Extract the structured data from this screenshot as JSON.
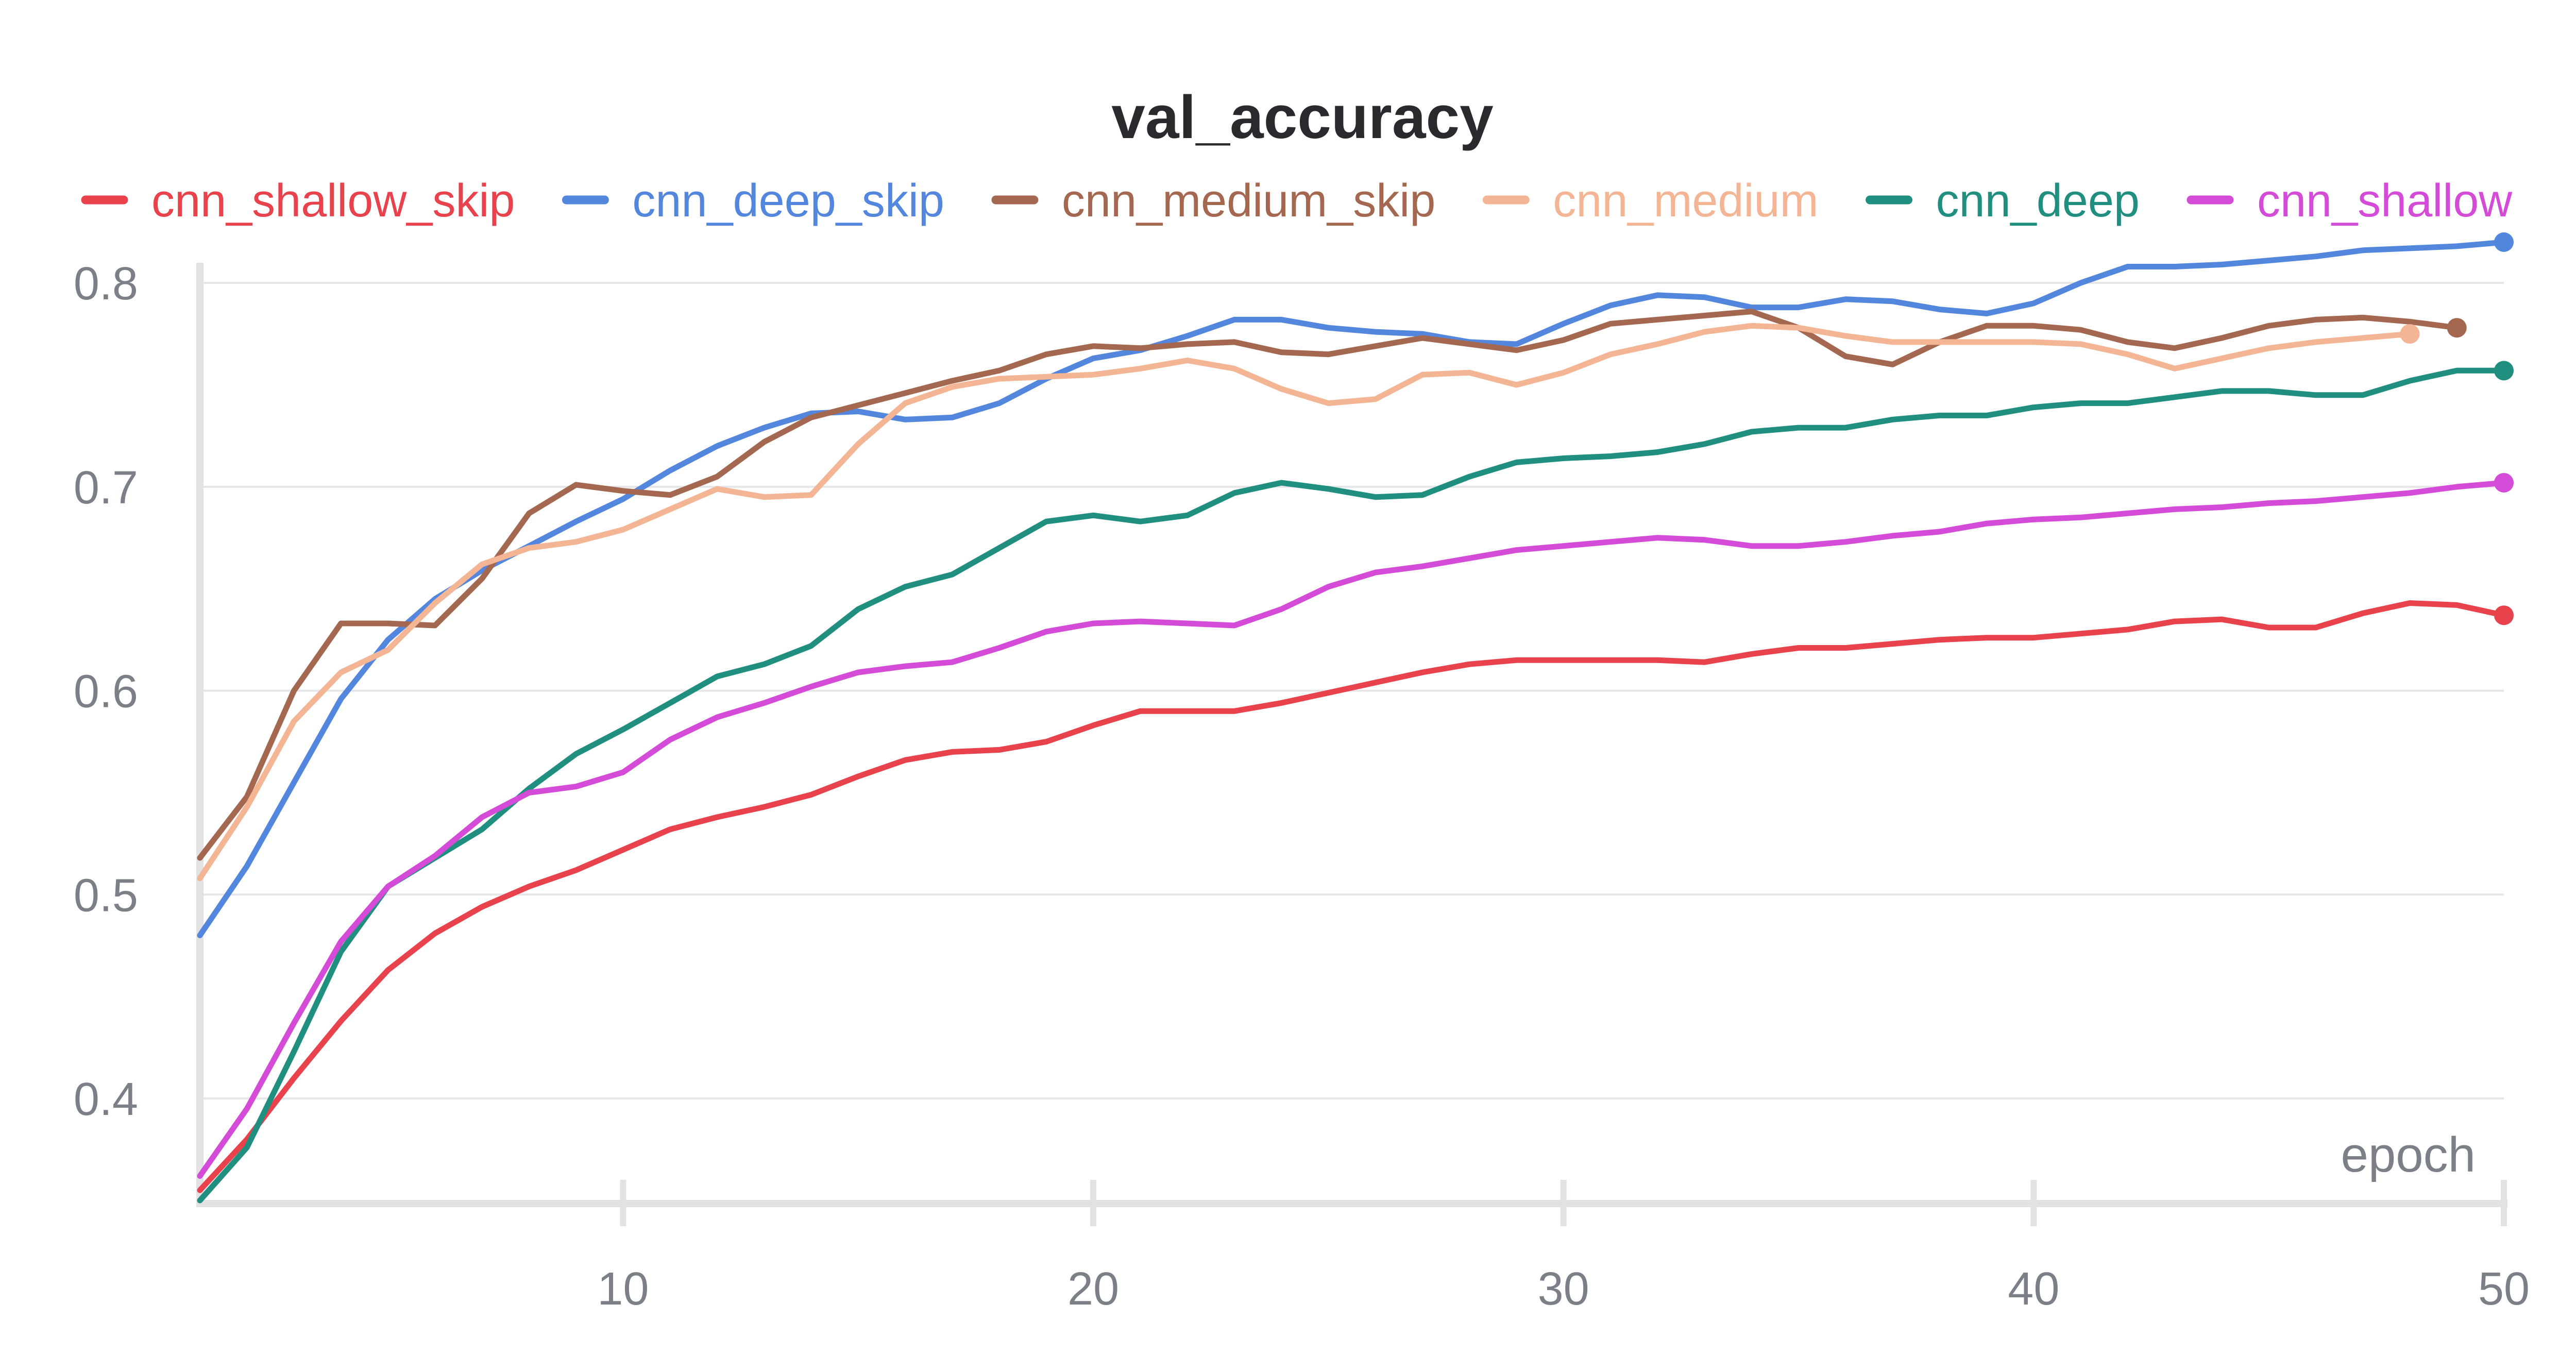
{
  "chart_data": {
    "type": "line",
    "title": "val_accuracy",
    "xlabel": "epoch",
    "ylabel": "",
    "xlim": [
      1,
      50
    ],
    "ylim": [
      0.35,
      0.82
    ],
    "xticks": [
      10,
      20,
      30,
      40,
      50
    ],
    "yticks": [
      0.4,
      0.5,
      0.6,
      0.7,
      0.8
    ],
    "ytick_labels": [
      "0.4",
      "0.5",
      "0.6",
      "0.7",
      "0.8"
    ],
    "grid": true,
    "legend_position": "top",
    "series": [
      {
        "name": "cnn_shallow_skip",
        "color": "#e8424d",
        "x": [
          1,
          2,
          3,
          4,
          5,
          6,
          7,
          8,
          9,
          10,
          11,
          12,
          13,
          14,
          15,
          16,
          17,
          18,
          19,
          20,
          21,
          22,
          23,
          24,
          25,
          26,
          27,
          28,
          29,
          30,
          31,
          32,
          33,
          34,
          35,
          36,
          37,
          38,
          39,
          40,
          41,
          42,
          43,
          44,
          45,
          46,
          47,
          48,
          49,
          50
        ],
        "values": [
          0.355,
          0.38,
          0.41,
          0.438,
          0.463,
          0.481,
          0.494,
          0.504,
          0.512,
          0.522,
          0.532,
          0.538,
          0.543,
          0.549,
          0.558,
          0.566,
          0.57,
          0.571,
          0.575,
          0.583,
          0.59,
          0.59,
          0.59,
          0.594,
          0.599,
          0.604,
          0.609,
          0.613,
          0.615,
          0.615,
          0.615,
          0.615,
          0.614,
          0.618,
          0.621,
          0.621,
          0.623,
          0.625,
          0.626,
          0.626,
          0.628,
          0.63,
          0.634,
          0.635,
          0.631,
          0.631,
          0.638,
          0.643,
          0.642,
          0.637
        ]
      },
      {
        "name": "cnn_deep_skip",
        "color": "#5387dd",
        "x": [
          1,
          2,
          3,
          4,
          5,
          6,
          7,
          8,
          9,
          10,
          11,
          12,
          13,
          14,
          15,
          16,
          17,
          18,
          19,
          20,
          21,
          22,
          23,
          24,
          25,
          26,
          27,
          28,
          29,
          30,
          31,
          32,
          33,
          34,
          35,
          36,
          37,
          38,
          39,
          40,
          41,
          42,
          43,
          44,
          45,
          46,
          47,
          48,
          49,
          50
        ],
        "values": [
          0.48,
          0.514,
          0.555,
          0.596,
          0.625,
          0.645,
          0.659,
          0.671,
          0.683,
          0.694,
          0.708,
          0.72,
          0.729,
          0.736,
          0.737,
          0.733,
          0.734,
          0.741,
          0.753,
          0.763,
          0.767,
          0.774,
          0.782,
          0.782,
          0.778,
          0.776,
          0.775,
          0.771,
          0.77,
          0.78,
          0.789,
          0.794,
          0.793,
          0.788,
          0.788,
          0.792,
          0.791,
          0.787,
          0.785,
          0.79,
          0.8,
          0.808,
          0.808,
          0.809,
          0.811,
          0.813,
          0.816,
          0.817,
          0.818,
          0.82
        ]
      },
      {
        "name": "cnn_medium_skip",
        "color": "#a46750",
        "x": [
          1,
          2,
          3,
          4,
          5,
          6,
          7,
          8,
          9,
          10,
          11,
          12,
          13,
          14,
          15,
          16,
          17,
          18,
          19,
          20,
          21,
          22,
          23,
          24,
          25,
          26,
          27,
          28,
          29,
          30,
          31,
          32,
          33,
          34,
          35,
          36,
          37,
          38,
          39,
          40,
          41,
          42,
          43,
          44,
          45,
          46,
          47,
          48,
          49
        ],
        "values": [
          0.518,
          0.548,
          0.6,
          0.633,
          0.633,
          0.632,
          0.655,
          0.687,
          0.701,
          0.698,
          0.696,
          0.705,
          0.722,
          0.734,
          0.74,
          0.746,
          0.752,
          0.757,
          0.765,
          0.769,
          0.768,
          0.77,
          0.771,
          0.766,
          0.765,
          0.769,
          0.773,
          0.77,
          0.767,
          0.772,
          0.78,
          0.782,
          0.784,
          0.786,
          0.778,
          0.764,
          0.76,
          0.771,
          0.779,
          0.779,
          0.777,
          0.771,
          0.768,
          0.773,
          0.779,
          0.782,
          0.783,
          0.781,
          0.778
        ]
      },
      {
        "name": "cnn_medium",
        "color": "#f4b595",
        "x": [
          1,
          2,
          3,
          4,
          5,
          6,
          7,
          8,
          9,
          10,
          11,
          12,
          13,
          14,
          15,
          16,
          17,
          18,
          19,
          20,
          21,
          22,
          23,
          24,
          25,
          26,
          27,
          28,
          29,
          30,
          31,
          32,
          33,
          34,
          35,
          36,
          37,
          38,
          39,
          40,
          41,
          42,
          43,
          44,
          45,
          46,
          47,
          48
        ],
        "values": [
          0.508,
          0.543,
          0.585,
          0.609,
          0.62,
          0.643,
          0.662,
          0.67,
          0.673,
          0.679,
          0.689,
          0.699,
          0.695,
          0.696,
          0.721,
          0.741,
          0.749,
          0.753,
          0.754,
          0.755,
          0.758,
          0.762,
          0.758,
          0.748,
          0.741,
          0.743,
          0.755,
          0.756,
          0.75,
          0.756,
          0.765,
          0.77,
          0.776,
          0.779,
          0.778,
          0.774,
          0.771,
          0.771,
          0.771,
          0.771,
          0.77,
          0.765,
          0.758,
          0.763,
          0.768,
          0.771,
          0.773,
          0.775
        ]
      },
      {
        "name": "cnn_deep",
        "color": "#208f7f",
        "x": [
          1,
          2,
          3,
          4,
          5,
          6,
          7,
          8,
          9,
          10,
          11,
          12,
          13,
          14,
          15,
          16,
          17,
          18,
          19,
          20,
          21,
          22,
          23,
          24,
          25,
          26,
          27,
          28,
          29,
          30,
          31,
          32,
          33,
          34,
          35,
          36,
          37,
          38,
          39,
          40,
          41,
          42,
          43,
          44,
          45,
          46,
          47,
          48,
          49,
          50
        ],
        "values": [
          0.35,
          0.376,
          0.423,
          0.472,
          0.504,
          0.518,
          0.532,
          0.552,
          0.569,
          0.581,
          0.594,
          0.607,
          0.613,
          0.622,
          0.64,
          0.651,
          0.657,
          0.67,
          0.683,
          0.686,
          0.683,
          0.686,
          0.697,
          0.702,
          0.699,
          0.695,
          0.696,
          0.705,
          0.712,
          0.714,
          0.715,
          0.717,
          0.721,
          0.727,
          0.729,
          0.729,
          0.733,
          0.735,
          0.735,
          0.739,
          0.741,
          0.741,
          0.744,
          0.747,
          0.747,
          0.745,
          0.745,
          0.752,
          0.757,
          0.757
        ]
      },
      {
        "name": "cnn_shallow",
        "color": "#d44bd8",
        "x": [
          1,
          2,
          3,
          4,
          5,
          6,
          7,
          8,
          9,
          10,
          11,
          12,
          13,
          14,
          15,
          16,
          17,
          18,
          19,
          20,
          21,
          22,
          23,
          24,
          25,
          26,
          27,
          28,
          29,
          30,
          31,
          32,
          33,
          34,
          35,
          36,
          37,
          38,
          39,
          40,
          41,
          42,
          43,
          44,
          45,
          46,
          47,
          48,
          49,
          50
        ],
        "values": [
          0.362,
          0.395,
          0.437,
          0.477,
          0.504,
          0.519,
          0.538,
          0.55,
          0.553,
          0.56,
          0.576,
          0.587,
          0.594,
          0.602,
          0.609,
          0.612,
          0.614,
          0.621,
          0.629,
          0.633,
          0.634,
          0.633,
          0.632,
          0.64,
          0.651,
          0.658,
          0.661,
          0.665,
          0.669,
          0.671,
          0.673,
          0.675,
          0.674,
          0.671,
          0.671,
          0.673,
          0.676,
          0.678,
          0.682,
          0.684,
          0.685,
          0.687,
          0.689,
          0.69,
          0.692,
          0.693,
          0.695,
          0.697,
          0.7,
          0.702
        ]
      }
    ]
  }
}
